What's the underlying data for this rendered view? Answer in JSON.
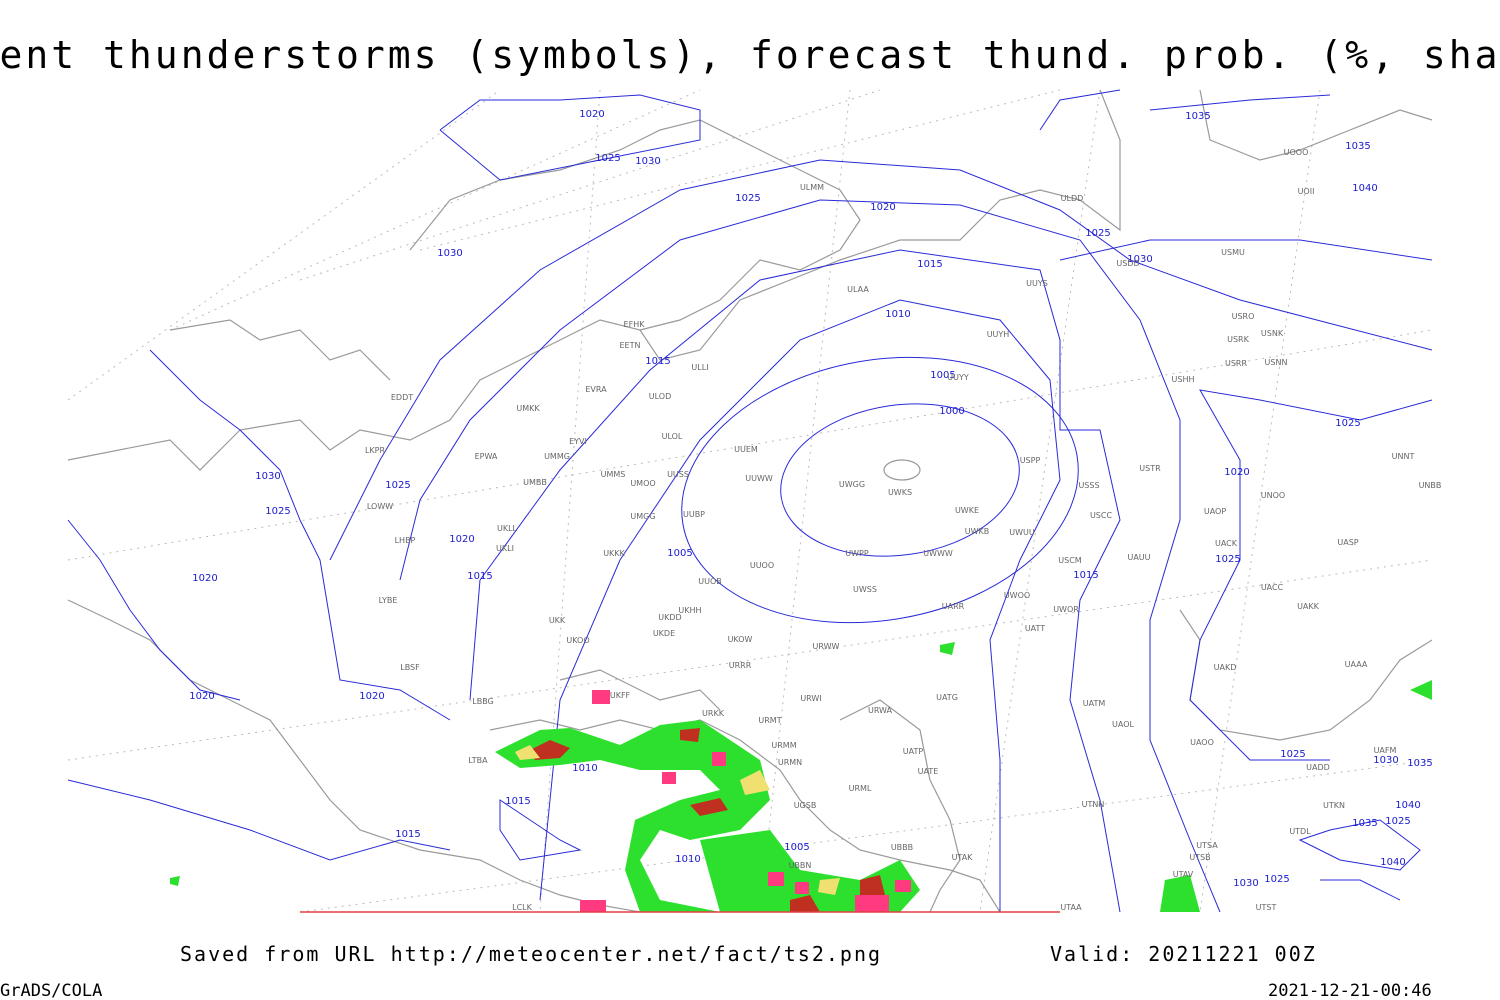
{
  "title": "Current thunderstorms (symbols), forecast thund. prob. (%, shaded)",
  "footer": {
    "source": "Saved from URL http://meteocenter.net/fact/ts2.png",
    "valid": "Valid: 20211221 00Z",
    "software": "GrADS/COLA",
    "timestamp": "2021-12-21-00:46"
  },
  "isobar_labels": [
    "1020",
    "1025",
    "1030",
    "1030",
    "1025",
    "1020",
    "1015",
    "1010",
    "1015",
    "1005",
    "1000",
    "1030",
    "1025",
    "1025",
    "1020",
    "1015",
    "1005",
    "1020",
    "1020",
    "1020",
    "1010",
    "1015",
    "1015",
    "1010",
    "1005",
    "1035",
    "1035",
    "1040",
    "1025",
    "1030",
    "1025",
    "1020",
    "1025",
    "1015",
    "1025",
    "1030",
    "1035",
    "1040",
    "1035",
    "1025",
    "1040",
    "1030",
    "1025"
  ],
  "stations": [
    "ULMM",
    "ULDD",
    "USDD",
    "USMU",
    "UOOO",
    "UOII",
    "ULAA",
    "UUYS",
    "UUYH",
    "USRO",
    "USRK",
    "USNK",
    "USRR",
    "USNN",
    "USHH",
    "EFHK",
    "EETN",
    "ULLI",
    "EVRA",
    "ULOD",
    "EDDT",
    "UMKK",
    "ULOL",
    "UUEM",
    "EYVI",
    "UMMG",
    "EPWA",
    "LKPR",
    "UUYY",
    "UUWW",
    "UWGG",
    "UWKS",
    "UWPP",
    "UWWW",
    "UWKE",
    "UWKB",
    "UWUU",
    "USPP",
    "USSS",
    "USTR",
    "USCC",
    "USCM",
    "UAUU",
    "UACK",
    "UAOP",
    "UNOO",
    "UNNT",
    "UNBB",
    "UASP",
    "UACC",
    "UAKK",
    "UAKD",
    "UAAA",
    "UATT",
    "UWOO",
    "UWOR",
    "UARR",
    "UWSS",
    "URWW",
    "URWI",
    "URWA",
    "UATG",
    "UATM",
    "UAOL",
    "UAOO",
    "UATE",
    "UATP",
    "URML",
    "URMM",
    "URMT",
    "URMN",
    "URKK",
    "UKFF",
    "URRR",
    "UKOW",
    "UKDE",
    "UKDD",
    "UKHH",
    "UKKK",
    "UUOO",
    "UUOB",
    "UUBP",
    "UMGG",
    "UMMS",
    "UMOO",
    "UUSS",
    "UMBB",
    "UKLL",
    "UKLI",
    "LOWW",
    "LHBP",
    "LYBE",
    "LBSF",
    "LBBG",
    "LTBA",
    "UKK",
    "UKOO",
    "UTNN",
    "UTKN",
    "UTDL",
    "UTSA",
    "UTSB",
    "UTAV",
    "UTAA",
    "UTAK",
    "UBBB",
    "UGSB",
    "UBBN",
    "UTST",
    "LCLK",
    "UAFM",
    "UADD"
  ]
}
